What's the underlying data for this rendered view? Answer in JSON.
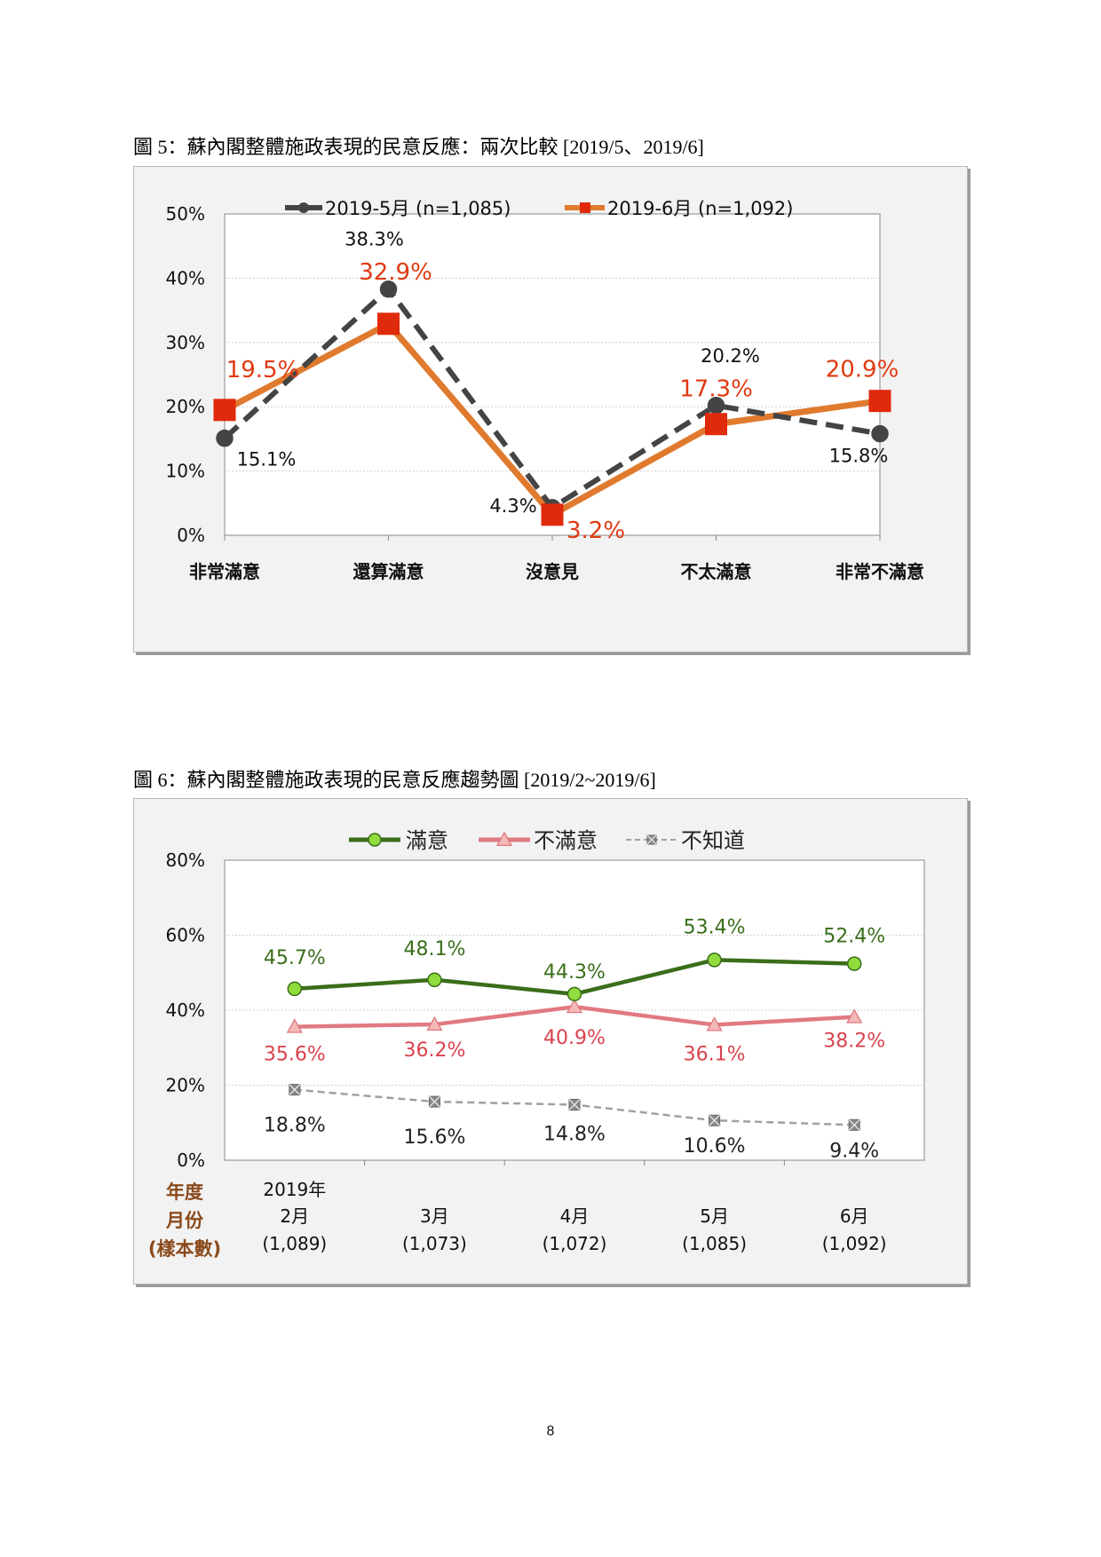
{
  "page": {
    "number": "8"
  },
  "figures": [
    {
      "title": "圖 5：蘇內閣整體施政表現的民意反應：兩次比較  [2019/5、2019/6]"
    },
    {
      "title": "圖 6：蘇內閣整體施政表現的民意反應趨勢圖  [2019/2~2019/6]"
    }
  ],
  "chart_data": [
    {
      "type": "line",
      "title": "圖 5：蘇內閣整體施政表現的民意反應：兩次比較  [2019/5、2019/6]",
      "categories": [
        "非常滿意",
        "還算滿意",
        "沒意見",
        "不太滿意",
        "非常不滿意"
      ],
      "ylim": [
        0,
        50
      ],
      "yticks": [
        "0%",
        "10%",
        "20%",
        "30%",
        "40%",
        "50%"
      ],
      "grid": true,
      "legend_position": "top",
      "series": [
        {
          "name": "2019-5月 (n=1,085)",
          "values": [
            15.1,
            38.3,
            4.3,
            20.2,
            15.8
          ],
          "labels": [
            "15.1%",
            "38.3%",
            "4.3%",
            "20.2%",
            "15.8%"
          ],
          "color": "#444444",
          "line": "dashed",
          "marker": "circle"
        },
        {
          "name": "2019-6月 (n=1,092)",
          "values": [
            19.5,
            32.9,
            3.2,
            17.3,
            20.9
          ],
          "labels": [
            "19.5%",
            "32.9%",
            "3.2%",
            "17.3%",
            "20.9%"
          ],
          "color": "#e07a2e",
          "marker_color": "#e02a0c",
          "label_color": "#e03a12",
          "line": "solid",
          "marker": "square"
        }
      ]
    },
    {
      "type": "line",
      "title": "圖 6：蘇內閣整體施政表現的民意反應趨勢圖  [2019/2~2019/6]",
      "categories": [
        {
          "year": "2019年",
          "month": "2月",
          "n": "(1,089)"
        },
        {
          "year": "",
          "month": "3月",
          "n": "(1,073)"
        },
        {
          "year": "",
          "month": "4月",
          "n": "(1,072)"
        },
        {
          "year": "",
          "month": "5月",
          "n": "(1,085)"
        },
        {
          "year": "",
          "month": "6月",
          "n": "(1,092)"
        }
      ],
      "axis_caption": [
        "年度",
        "月份",
        "(樣本數)"
      ],
      "axis_caption_color": "#8b4a1c",
      "ylim": [
        0,
        80
      ],
      "yticks": [
        "0%",
        "20%",
        "40%",
        "60%",
        "80%"
      ],
      "grid": true,
      "legend_position": "top",
      "series": [
        {
          "name": "滿意",
          "values": [
            45.7,
            48.1,
            44.3,
            53.4,
            52.4
          ],
          "labels": [
            "45.7%",
            "48.1%",
            "44.3%",
            "53.4%",
            "52.4%"
          ],
          "color": "#3a6e1a",
          "marker_color": "#8fdc3c",
          "marker": "circle",
          "line": "solid"
        },
        {
          "name": "不滿意",
          "values": [
            35.6,
            36.2,
            40.9,
            36.1,
            38.2
          ],
          "labels": [
            "35.6%",
            "36.2%",
            "40.9%",
            "36.1%",
            "38.2%"
          ],
          "color": "#e07a80",
          "marker_color": "#f4b8b8",
          "label_color": "#d9434e",
          "marker": "triangle",
          "line": "solid"
        },
        {
          "name": "不知道",
          "values": [
            18.8,
            15.6,
            14.8,
            10.6,
            9.4
          ],
          "labels": [
            "18.8%",
            "15.6%",
            "14.8%",
            "10.6%",
            "9.4%"
          ],
          "color": "#a0a0a0",
          "marker_color": "#888888",
          "label_color": "#222222",
          "marker": "x-square",
          "line": "dashed"
        }
      ]
    }
  ]
}
